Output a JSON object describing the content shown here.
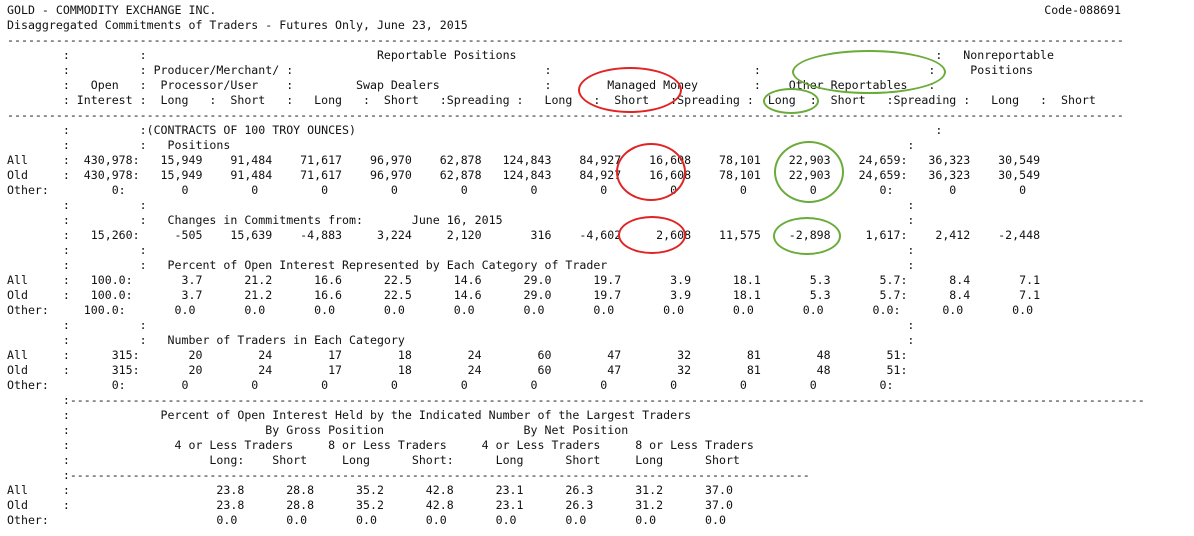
{
  "header": {
    "title": "GOLD - COMMODITY EXCHANGE INC.",
    "subtitle": "Disaggregated Commitments of Traders - Futures Only, June 23, 2015",
    "code": "Code-088691"
  },
  "report_lines": [
    "----------------------------------------------------------------------------------------------------------------------------------------------------------------",
    "        :          :                                 Reportable Positions                                                            :   Nonreportable",
    "        :          : Producer/Merchant/ :                                    :                             :                        :     Positions",
    "        :   Open   :  Processor/User    :         Swap Dealers               :        Managed Money        :    Other Reportables   :",
    "        : Interest :  Long   :  Short   :   Long   :  Short   :Spreading :   Long   :  Short   :Spreading :  Long  :  Short   :Spreading :   Long   :  Short",
    "----------------------------------------------------------------------------------------------------------------------------------------------------------------",
    "        :          :(CONTRACTS OF 100 TROY OUNCES)                                                                                   :",
    "        :          :   Positions                                                                                                 :",
    "All     :  430,978:   15,949    91,484    71,617    96,970    62,878   124,843    84,927    16,608    78,101    22,903    24,659:   36,323    30,549",
    "Old     :  430,978:   15,949    91,484    71,617    96,970    62,878   124,843    84,927    16,608    78,101    22,903    24,659:   36,323    30,549",
    "Other:         0:        0         0         0         0         0         0         0         0         0         0         0:        0         0",
    "        :          :                                                                                                             :",
    "        :          :   Changes in Commitments from:       June 16, 2015                                                          :",
    "        :   15,260:     -505    15,639    -4,883     3,224     2,120       316    -4,602     2,608    11,575    -2,898     1,617:    2,412    -2,448",
    "        :          :                                                                                                             :",
    "        :          :   Percent of Open Interest Represented by Each Category of Trader                                           :",
    "All     :   100.0:       3.7      21.2      16.6      22.5      14.6      29.0      19.7       3.9      18.1       5.3       5.7:      8.4       7.1",
    "Old     :   100.0:       3.7      21.2      16.6      22.5      14.6      29.0      19.7       3.9      18.1       5.3       5.7:      8.4       7.1",
    "Other:     100.0:       0.0       0.0       0.0       0.0       0.0       0.0       0.0       0.0       0.0       0.0       0.0:      0.0       0.0",
    "        :          :                                                                                                             :",
    "        :          :   Number of Traders in Each Category                                                                        :",
    "All     :      315:       20        24        17        18        24        60        47        32        81        48        51:",
    "Old     :      315:       20        24        17        18        24        60        47        32        81        48        51:",
    "Other:         0:        0         0         0         0         0         0         0         0         0         0         0:",
    "        :----------------------------------------------------------------------------------------------------------------------------------------------------------",
    "        :             Percent of Open Interest Held by the Indicated Number of the Largest Traders",
    "        :                            By Gross Position                    By Net Position",
    "        :               4 or Less Traders     8 or Less Traders     4 or Less Traders     8 or Less Traders",
    "        :                    Long:    Short     Long      Short:      Long      Short     Long      Short",
    "        :----------------------------------------------------------------------------------------------------------",
    "All     :                     23.8      28.8      35.2      42.8      23.1      26.3      31.2      37.0",
    "Old     :                     23.8      28.8      35.2      42.8      23.1      26.3      31.2      37.0",
    "Other:                        0.0       0.0       0.0       0.0       0.0       0.0       0.0       0.0"
  ],
  "highlights": {
    "red_color": "#e02424",
    "green_color": "#6aab3a"
  }
}
